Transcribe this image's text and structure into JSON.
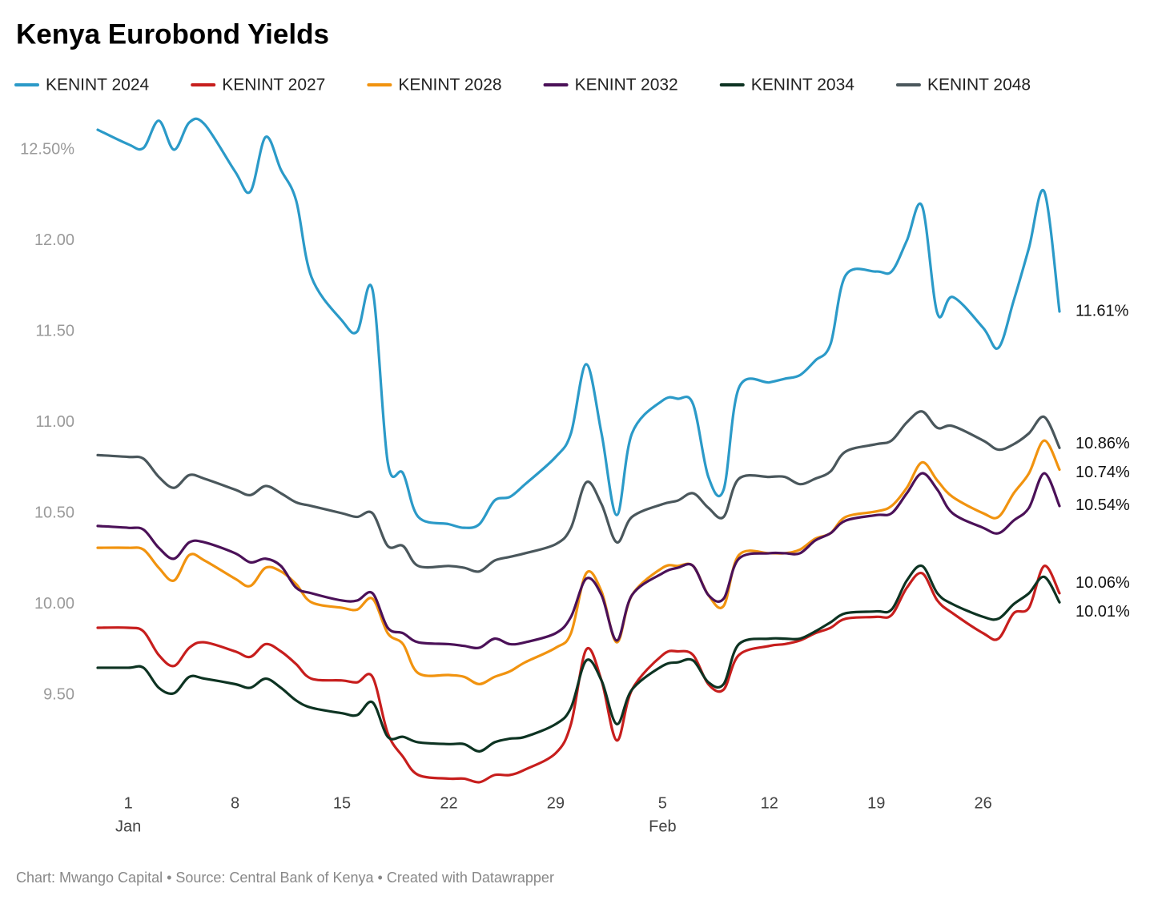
{
  "chart_data": {
    "type": "line",
    "title": "Kenya Eurobond Yields",
    "source": "Chart: Mwango Capital • Source: Central Bank of Kenya • Created with Datawrapper",
    "x": [
      -2,
      0,
      1,
      2,
      3,
      4,
      5,
      7,
      8,
      9,
      10,
      11,
      12,
      14,
      15,
      16,
      17,
      18,
      19,
      21,
      22,
      23,
      24,
      25,
      26,
      28,
      29,
      30,
      31,
      32,
      33,
      35,
      36,
      37,
      38,
      39,
      40,
      42,
      43,
      44,
      45,
      46,
      47,
      49,
      50,
      51,
      52,
      53,
      54,
      56,
      57,
      58,
      59,
      60,
      61
    ],
    "xlim": [
      -2,
      61
    ],
    "xticks": [
      {
        "value": 0,
        "label": "1"
      },
      {
        "value": 7,
        "label": "8"
      },
      {
        "value": 14,
        "label": "15"
      },
      {
        "value": 21,
        "label": "22"
      },
      {
        "value": 28,
        "label": "29"
      },
      {
        "value": 35,
        "label": "5"
      },
      {
        "value": 42,
        "label": "12"
      },
      {
        "value": 49,
        "label": "19"
      },
      {
        "value": 56,
        "label": "26"
      }
    ],
    "xmonths": [
      {
        "value": 0,
        "label": "Jan"
      },
      {
        "value": 35,
        "label": "Feb"
      }
    ],
    "ylim": [
      9.0,
      12.7
    ],
    "yticks": [
      {
        "value": 9.5,
        "label": "9.50"
      },
      {
        "value": 10,
        "label": "10.00"
      },
      {
        "value": 10.5,
        "label": "10.50"
      },
      {
        "value": 11,
        "label": "11.00"
      },
      {
        "value": 11.5,
        "label": "11.50"
      },
      {
        "value": 12,
        "label": "12.00"
      },
      {
        "value": 12.5,
        "label": "12.50%"
      }
    ],
    "grid": false,
    "legend": "top-left",
    "series": [
      {
        "name": "KENINT 2024",
        "color": "#2b9ac8",
        "values": [
          12.61,
          12.53,
          12.51,
          12.66,
          12.5,
          12.65,
          12.64,
          12.38,
          12.27,
          12.57,
          12.39,
          12.22,
          11.8,
          11.56,
          11.5,
          11.73,
          10.78,
          10.72,
          10.48,
          10.44,
          10.42,
          10.44,
          10.57,
          10.59,
          10.66,
          10.81,
          10.94,
          11.32,
          10.94,
          10.49,
          10.94,
          11.12,
          11.13,
          11.1,
          10.7,
          10.63,
          11.19,
          11.22,
          11.24,
          11.26,
          11.34,
          11.43,
          11.81,
          11.83,
          11.83,
          12.0,
          12.19,
          11.6,
          11.69,
          11.52,
          11.41,
          11.67,
          11.96,
          12.27,
          11.61
        ],
        "value_labels": [
          null,
          null,
          null,
          null,
          null,
          null,
          null,
          null,
          null,
          null,
          null,
          null,
          null,
          null,
          null,
          null,
          null,
          null,
          null,
          null,
          null,
          null,
          null,
          null,
          null,
          null,
          null,
          null,
          null,
          null,
          null,
          null,
          null,
          null,
          null,
          null,
          null,
          null,
          null,
          null,
          null,
          null,
          null,
          null,
          null,
          null,
          null,
          null,
          null,
          null,
          null,
          null,
          null,
          null,
          "11.61%"
        ]
      },
      {
        "name": "KENINT 2027",
        "color": "#c71e1d",
        "values": [
          9.87,
          9.87,
          9.85,
          9.72,
          9.66,
          9.76,
          9.79,
          9.74,
          9.71,
          9.78,
          9.74,
          9.67,
          9.59,
          9.58,
          9.57,
          9.6,
          9.29,
          9.16,
          9.06,
          9.04,
          9.04,
          9.02,
          9.06,
          9.06,
          9.09,
          9.18,
          9.34,
          9.75,
          9.58,
          9.25,
          9.53,
          9.72,
          9.74,
          9.72,
          9.56,
          9.53,
          9.72,
          9.77,
          9.78,
          9.8,
          9.84,
          9.87,
          9.92,
          9.93,
          9.94,
          10.09,
          10.17,
          10.02,
          9.95,
          9.84,
          9.81,
          9.95,
          9.98,
          10.21,
          10.06
        ],
        "value_labels": [
          null,
          null,
          null,
          null,
          null,
          null,
          null,
          null,
          null,
          null,
          null,
          null,
          null,
          null,
          null,
          null,
          null,
          null,
          null,
          null,
          null,
          null,
          null,
          null,
          null,
          null,
          null,
          null,
          null,
          null,
          null,
          null,
          null,
          null,
          null,
          null,
          null,
          null,
          null,
          null,
          null,
          null,
          null,
          null,
          null,
          null,
          null,
          null,
          null,
          null,
          null,
          null,
          null,
          null,
          "10.06%"
        ]
      },
      {
        "name": "KENINT 2028",
        "color": "#f1930f",
        "values": [
          10.31,
          10.31,
          10.3,
          10.2,
          10.13,
          10.27,
          10.24,
          10.14,
          10.1,
          10.2,
          10.18,
          10.11,
          10.01,
          9.98,
          9.97,
          10.03,
          9.84,
          9.78,
          9.62,
          9.61,
          9.6,
          9.56,
          9.6,
          9.63,
          9.68,
          9.76,
          9.84,
          10.17,
          10.07,
          9.79,
          10.05,
          10.2,
          10.21,
          10.21,
          10.05,
          9.99,
          10.27,
          10.28,
          10.28,
          10.3,
          10.36,
          10.39,
          10.48,
          10.51,
          10.54,
          10.64,
          10.78,
          10.68,
          10.59,
          10.5,
          10.48,
          10.61,
          10.72,
          10.9,
          10.74
        ],
        "value_labels": [
          null,
          null,
          null,
          null,
          null,
          null,
          null,
          null,
          null,
          null,
          null,
          null,
          null,
          null,
          null,
          null,
          null,
          null,
          null,
          null,
          null,
          null,
          null,
          null,
          null,
          null,
          null,
          null,
          null,
          null,
          null,
          null,
          null,
          null,
          null,
          null,
          null,
          null,
          null,
          null,
          null,
          null,
          null,
          null,
          null,
          null,
          null,
          null,
          null,
          null,
          null,
          null,
          null,
          null,
          "10.74%"
        ]
      },
      {
        "name": "KENINT 2032",
        "color": "#4b1158",
        "values": [
          10.43,
          10.42,
          10.41,
          10.31,
          10.25,
          10.34,
          10.34,
          10.28,
          10.23,
          10.25,
          10.21,
          10.09,
          10.06,
          10.02,
          10.02,
          10.06,
          9.87,
          9.84,
          9.79,
          9.78,
          9.77,
          9.76,
          9.81,
          9.78,
          9.79,
          9.84,
          9.93,
          10.14,
          10.05,
          9.8,
          10.05,
          10.17,
          10.2,
          10.21,
          10.05,
          10.03,
          10.25,
          10.28,
          10.28,
          10.28,
          10.35,
          10.39,
          10.46,
          10.49,
          10.5,
          10.61,
          10.72,
          10.63,
          10.5,
          10.42,
          10.39,
          10.46,
          10.53,
          10.72,
          10.54
        ],
        "value_labels": [
          null,
          null,
          null,
          null,
          null,
          null,
          null,
          null,
          null,
          null,
          null,
          null,
          null,
          null,
          null,
          null,
          null,
          null,
          null,
          null,
          null,
          null,
          null,
          null,
          null,
          null,
          null,
          null,
          null,
          null,
          null,
          null,
          null,
          null,
          null,
          null,
          null,
          null,
          null,
          null,
          null,
          null,
          null,
          null,
          null,
          null,
          null,
          null,
          null,
          null,
          null,
          null,
          null,
          null,
          "10.54%"
        ]
      },
      {
        "name": "KENINT 2034",
        "color": "#0d3322",
        "values": [
          9.65,
          9.65,
          9.65,
          9.54,
          9.51,
          9.6,
          9.59,
          9.56,
          9.54,
          9.59,
          9.54,
          9.47,
          9.43,
          9.4,
          9.39,
          9.46,
          9.27,
          9.27,
          9.24,
          9.23,
          9.23,
          9.19,
          9.24,
          9.26,
          9.27,
          9.34,
          9.43,
          9.69,
          9.58,
          9.34,
          9.53,
          9.66,
          9.68,
          9.69,
          9.57,
          9.56,
          9.78,
          9.81,
          9.81,
          9.81,
          9.85,
          9.9,
          9.95,
          9.96,
          9.97,
          10.13,
          10.21,
          10.06,
          10.0,
          9.93,
          9.92,
          10.0,
          10.06,
          10.15,
          10.01
        ],
        "value_labels": [
          null,
          null,
          null,
          null,
          null,
          null,
          null,
          null,
          null,
          null,
          null,
          null,
          null,
          null,
          null,
          null,
          null,
          null,
          null,
          null,
          null,
          null,
          null,
          null,
          null,
          null,
          null,
          null,
          null,
          null,
          null,
          null,
          null,
          null,
          null,
          null,
          null,
          null,
          null,
          null,
          null,
          null,
          null,
          null,
          null,
          null,
          null,
          null,
          null,
          null,
          null,
          null,
          null,
          null,
          "10.01%"
        ]
      },
      {
        "name": "KENINT 2048",
        "color": "#4a575c",
        "values": [
          10.82,
          10.81,
          10.8,
          10.7,
          10.64,
          10.71,
          10.69,
          10.63,
          10.6,
          10.65,
          10.61,
          10.56,
          10.54,
          10.5,
          10.48,
          10.5,
          10.32,
          10.32,
          10.21,
          10.21,
          10.2,
          10.18,
          10.24,
          10.26,
          10.28,
          10.33,
          10.42,
          10.67,
          10.55,
          10.34,
          10.48,
          10.55,
          10.57,
          10.61,
          10.53,
          10.48,
          10.69,
          10.7,
          10.7,
          10.66,
          10.69,
          10.73,
          10.84,
          10.88,
          10.9,
          11.0,
          11.06,
          10.97,
          10.98,
          10.9,
          10.85,
          10.88,
          10.94,
          11.03,
          10.86
        ],
        "value_labels": [
          null,
          null,
          null,
          null,
          null,
          null,
          null,
          null,
          null,
          null,
          null,
          null,
          null,
          null,
          null,
          null,
          null,
          null,
          null,
          null,
          null,
          null,
          null,
          null,
          null,
          null,
          null,
          null,
          null,
          null,
          null,
          null,
          null,
          null,
          null,
          null,
          null,
          null,
          null,
          null,
          null,
          null,
          null,
          null,
          null,
          null,
          null,
          null,
          null,
          null,
          null,
          null,
          null,
          null,
          "10.86%"
        ]
      }
    ]
  }
}
